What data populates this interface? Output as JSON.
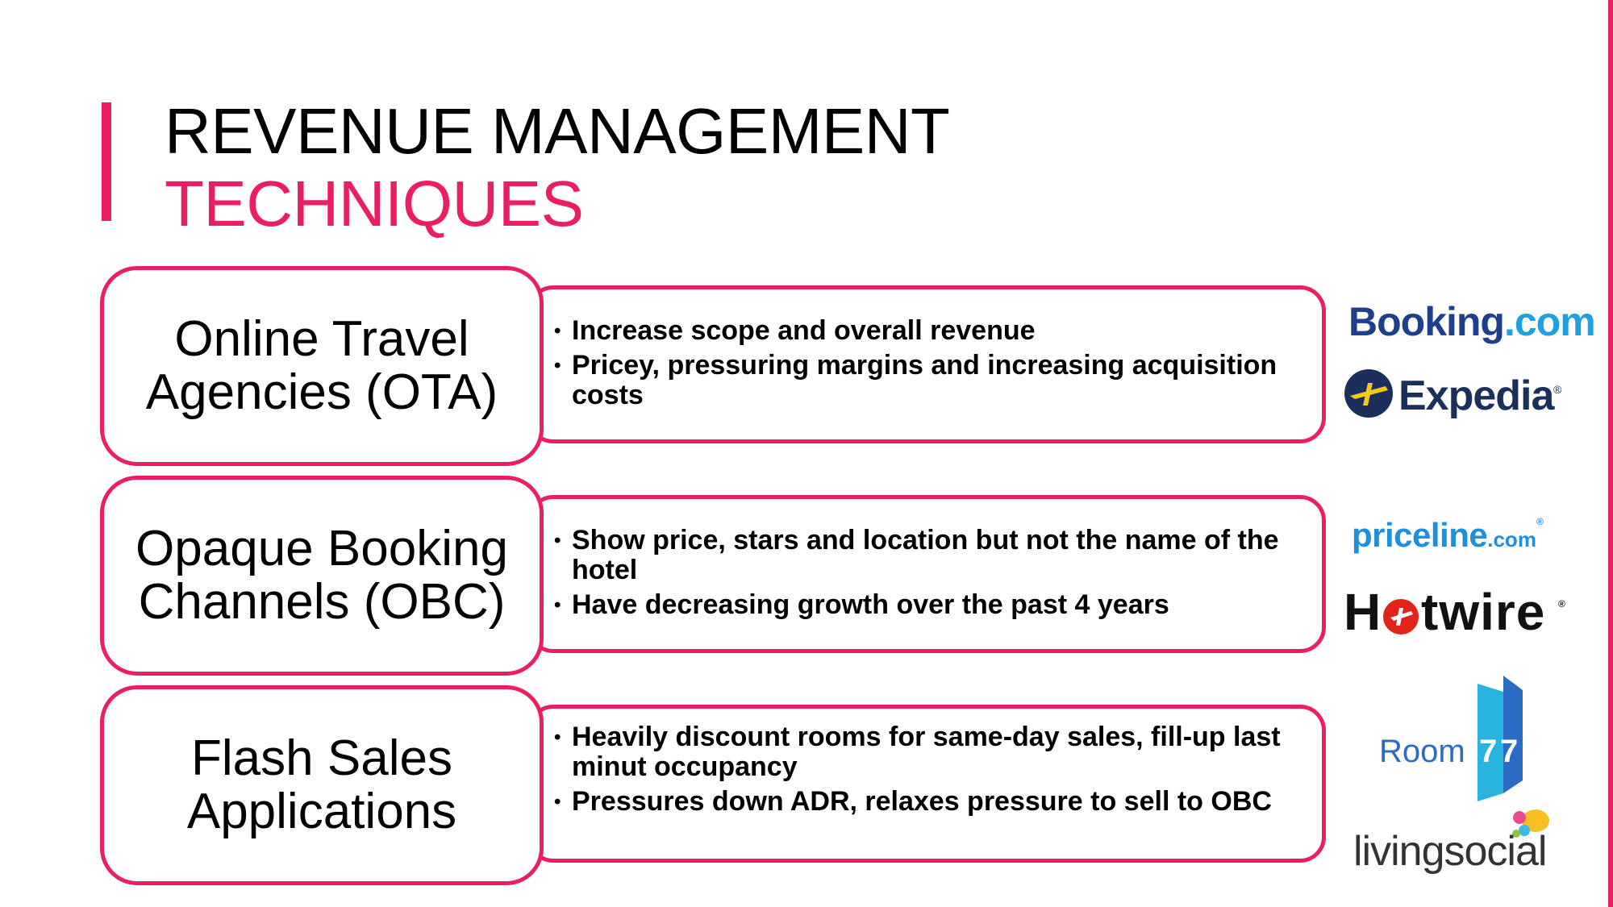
{
  "title": {
    "line1": "REVENUE MANAGEMENT",
    "line2": "TECHNIQUES"
  },
  "colors": {
    "accent": "#ea1f63",
    "booking_blue": "#1d3f8c",
    "booking_light": "#1fa0e0",
    "expedia_navy": "#1b2f5c",
    "expedia_yellow": "#f7c81e",
    "priceline_blue": "#1e8fdc",
    "hotwire_red": "#e2231a",
    "room77_blue": "#2a6cc4"
  },
  "rows": [
    {
      "label_line1": "Online Travel",
      "label_line2": "Agencies (OTA)",
      "bullets": [
        {
          "symbol": "•",
          "text": "Increase scope and overall revenue"
        },
        {
          "symbol": "•",
          "text": "Pricey, pressuring margins and increasing acquisition costs"
        }
      ]
    },
    {
      "label_line1": "Opaque Booking",
      "label_line2": "Channels (OBC)",
      "bullets": [
        {
          "symbol": "•",
          "text": "Show price, stars and location but not the name of the hotel"
        },
        {
          "symbol": "•",
          "text": "Have decreasing growth over the past 4 years"
        }
      ]
    },
    {
      "label_line1": "Flash Sales",
      "label_line2": "Applications",
      "bullets": [
        {
          "symbol": "•",
          "text": "Heavily discount rooms for same-day sales, fill-up last minut occupancy"
        },
        {
          "symbol": "•",
          "text": "Pressures down ADR, relaxes pressure to sell to OBC"
        }
      ]
    }
  ],
  "logos": {
    "booking": {
      "part1": "Booking",
      "part2": ".com"
    },
    "expedia": {
      "name": "Expedia",
      "mark": "®"
    },
    "priceline": {
      "part1": "priceline",
      "part2": ".com",
      "mark": "®"
    },
    "hotwire": {
      "part1": "H",
      "part2": "twire",
      "mark": "®"
    },
    "room77": {
      "word": "Room",
      "d1": "7",
      "d2": "7"
    },
    "livingsocial": {
      "name": "livingsocial"
    }
  }
}
